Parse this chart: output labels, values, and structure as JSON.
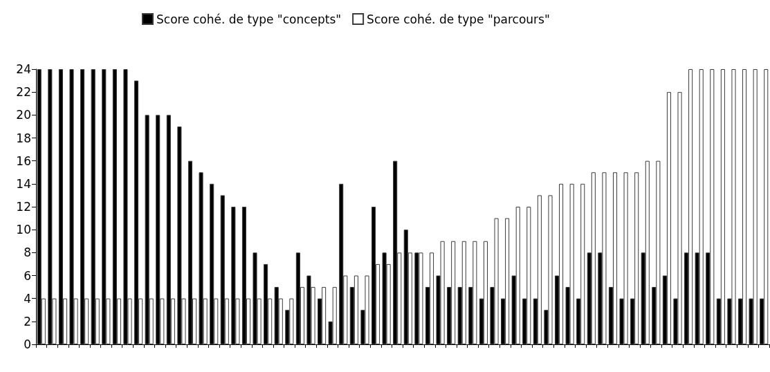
{
  "chart_data": {
    "type": "bar",
    "categories": [
      null,
      null,
      null,
      null,
      null,
      null,
      null,
      null,
      null,
      null,
      null,
      null,
      null,
      null,
      null,
      null,
      null,
      null,
      null,
      null,
      null,
      null,
      null,
      null,
      null,
      null,
      null,
      null,
      null,
      null,
      null,
      null,
      null,
      null,
      null,
      null,
      null,
      null,
      null,
      null,
      null,
      null,
      null,
      null,
      null,
      null,
      null,
      null,
      null,
      null,
      null,
      null,
      null,
      null,
      null,
      null,
      null,
      null,
      null,
      null,
      null,
      null,
      null,
      null,
      null,
      null,
      null,
      null
    ],
    "series": [
      {
        "name": "Score cohé. de type \"concepts\"",
        "color": "#000000",
        "values": [
          24,
          24,
          24,
          24,
          24,
          24,
          24,
          24,
          24,
          23,
          20,
          20,
          20,
          19,
          16,
          15,
          14,
          13,
          12,
          12,
          8,
          7,
          5,
          3,
          8,
          6,
          4,
          2,
          14,
          5,
          3,
          12,
          8,
          16,
          10,
          8,
          5,
          6,
          5,
          5,
          5,
          4,
          5,
          4,
          6,
          4,
          4,
          3,
          6,
          5,
          4,
          8,
          8,
          5,
          4,
          4,
          8,
          5,
          6,
          4,
          8,
          8,
          8,
          4,
          4,
          4,
          4,
          4
        ]
      },
      {
        "name": "Score cohé. de type \"parcours\"",
        "color": "#ffffff",
        "values": [
          4,
          4,
          4,
          4,
          4,
          4,
          4,
          4,
          4,
          4,
          4,
          4,
          4,
          4,
          4,
          4,
          4,
          4,
          4,
          4,
          4,
          4,
          4,
          4,
          5,
          5,
          5,
          5,
          6,
          6,
          6,
          7,
          7,
          8,
          8,
          8,
          8,
          9,
          9,
          9,
          9,
          9,
          11,
          11,
          12,
          12,
          13,
          13,
          14,
          14,
          14,
          15,
          15,
          15,
          15,
          15,
          16,
          16,
          22,
          22,
          24,
          24,
          24,
          24,
          24,
          24,
          24,
          24
        ]
      }
    ],
    "ylim": [
      0,
      24
    ],
    "yticks": [
      0,
      2,
      4,
      6,
      8,
      10,
      12,
      14,
      16,
      18,
      20,
      22,
      24
    ],
    "grid": false,
    "legend": "top",
    "tick_labels": "y"
  }
}
